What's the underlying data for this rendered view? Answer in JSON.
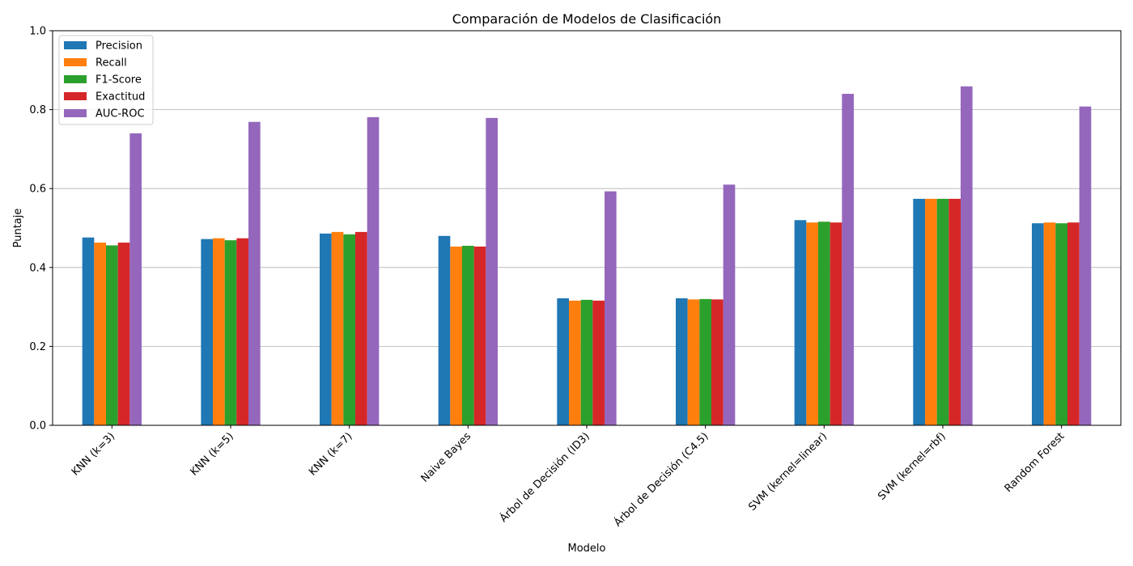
{
  "chart_data": {
    "type": "bar",
    "title": "Comparación de Modelos de Clasificación",
    "xlabel": "Modelo",
    "ylabel": "Puntaje",
    "ylim": [
      0,
      1.0
    ],
    "yticks": [
      "0.0",
      "0.2",
      "0.4",
      "0.6",
      "0.8",
      "1.0"
    ],
    "grid": "horizontal",
    "legend_position": "top-left",
    "categories": [
      "KNN (k=3)",
      "KNN (k=5)",
      "KNN (k=7)",
      "Naive Bayes",
      "Árbol de Decisión (ID3)",
      "Árbol de Decisión (C4.5)",
      "SVM (kernel=linear)",
      "SVM (kernel=rbf)",
      "Random Forest"
    ],
    "series": [
      {
        "name": "Precision",
        "color": "#1f77b4",
        "values": [
          0.476,
          0.472,
          0.486,
          0.48,
          0.322,
          0.322,
          0.52,
          0.574,
          0.512
        ]
      },
      {
        "name": "Recall",
        "color": "#ff7f0e",
        "values": [
          0.463,
          0.474,
          0.49,
          0.453,
          0.316,
          0.319,
          0.514,
          0.574,
          0.514
        ]
      },
      {
        "name": "F1-Score",
        "color": "#2ca02c",
        "values": [
          0.456,
          0.469,
          0.484,
          0.455,
          0.318,
          0.32,
          0.516,
          0.574,
          0.512
        ]
      },
      {
        "name": "Exactitud",
        "color": "#d62728",
        "values": [
          0.463,
          0.474,
          0.49,
          0.453,
          0.316,
          0.319,
          0.514,
          0.574,
          0.514
        ]
      },
      {
        "name": "AUC-ROC",
        "color": "#9467bd",
        "values": [
          0.74,
          0.769,
          0.781,
          0.779,
          0.593,
          0.61,
          0.84,
          0.859,
          0.808
        ]
      }
    ]
  }
}
